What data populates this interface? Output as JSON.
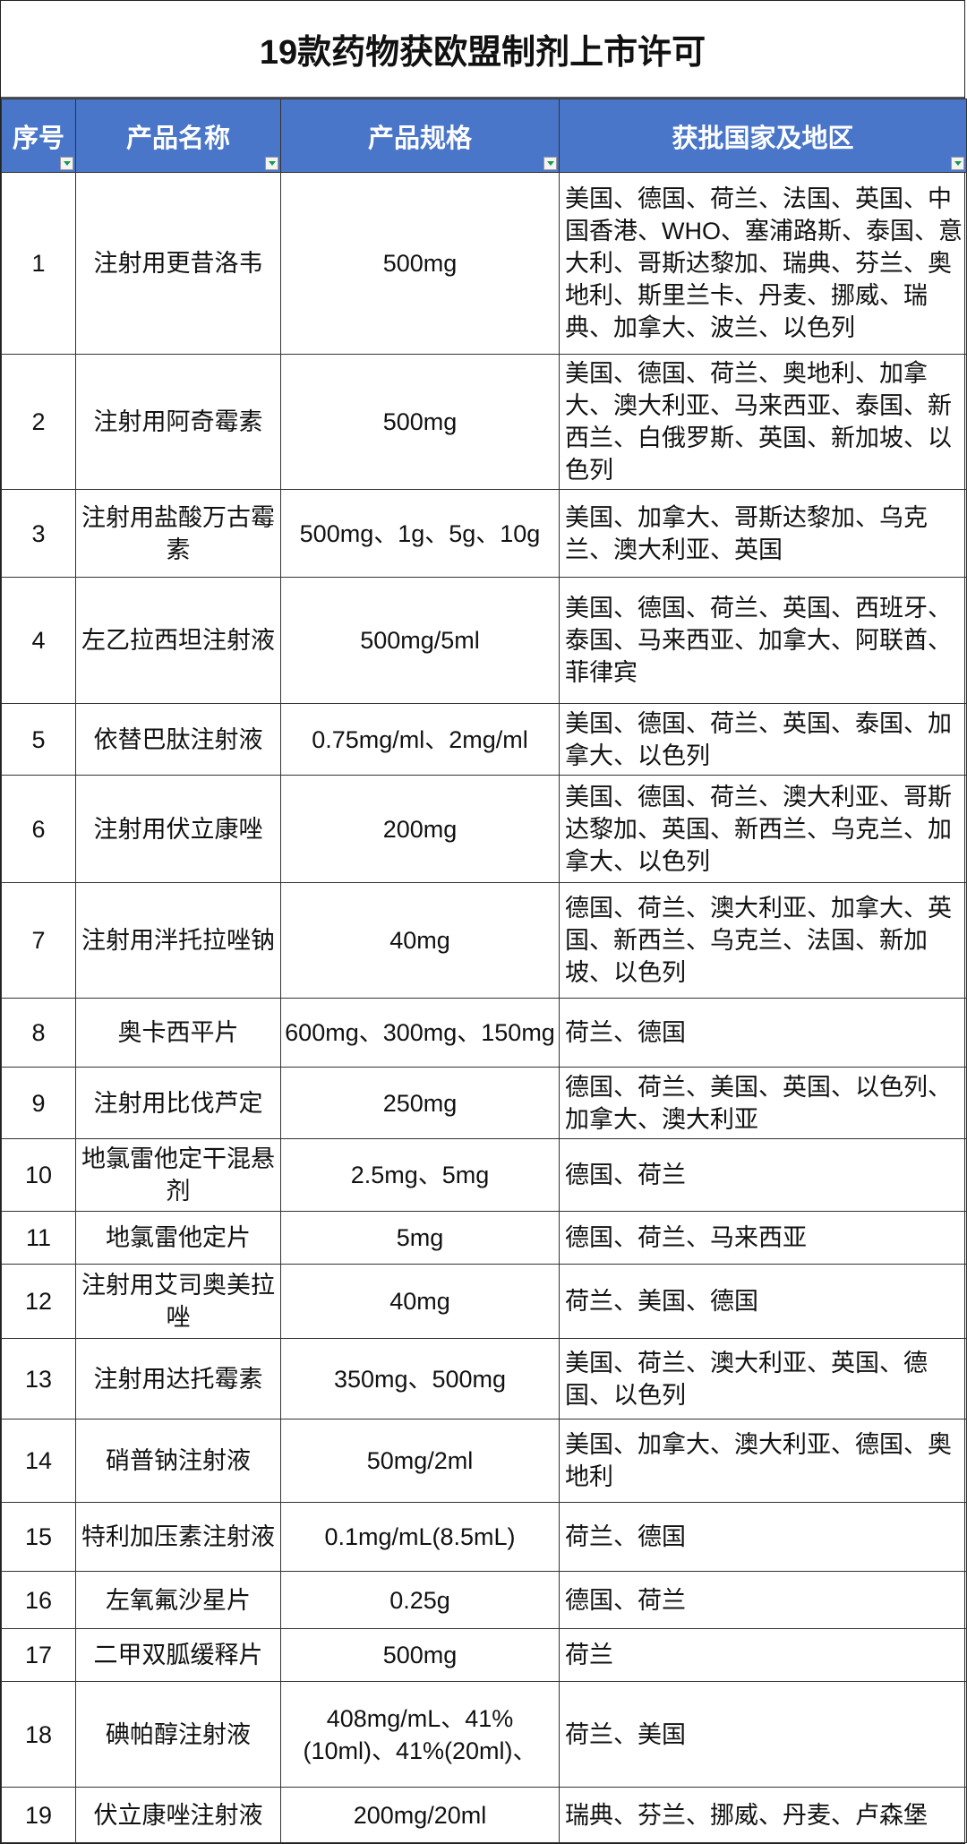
{
  "title": "19款药物获欧盟制剂上市许可",
  "header_color": "#4a76c9",
  "columns": [
    "序号",
    "产品名称",
    "产品规格",
    "获批国家及地区"
  ],
  "rows": [
    {
      "no": "1",
      "name": "注射用更昔洛韦",
      "spec": "500mg",
      "regions": "美国、德国、荷兰、法国、英国、中国香港、WHO、塞浦路斯、泰国、意大利、哥斯达黎加、瑞典、芬兰、奥地利、斯里兰卡、丹麦、挪威、瑞典、加拿大、波兰、以色列"
    },
    {
      "no": "2",
      "name": "注射用阿奇霉素",
      "spec": "500mg",
      "regions": "美国、德国、荷兰、奥地利、加拿大、澳大利亚、马来西亚、泰国、新西兰、白俄罗斯、英国、新加坡、以色列"
    },
    {
      "no": "3",
      "name": "注射用盐酸万古霉素",
      "spec": "500mg、1g、5g、10g",
      "regions": "美国、加拿大、哥斯达黎加、乌克兰、澳大利亚、英国"
    },
    {
      "no": "4",
      "name": "左乙拉西坦注射液",
      "spec": "500mg/5ml",
      "regions": "美国、德国、荷兰、英国、西班牙、泰国、马来西亚、加拿大、阿联酋、菲律宾"
    },
    {
      "no": "5",
      "name": "依替巴肽注射液",
      "spec": "0.75mg/ml、2mg/ml",
      "regions": "美国、德国、荷兰、英国、泰国、加拿大、以色列"
    },
    {
      "no": "6",
      "name": "注射用伏立康唑",
      "spec": "200mg",
      "regions": "美国、德国、荷兰、澳大利亚、哥斯达黎加、英国、新西兰、乌克兰、加拿大、以色列"
    },
    {
      "no": "7",
      "name": "注射用泮托拉唑钠",
      "spec": "40mg",
      "regions": "德国、荷兰、澳大利亚、加拿大、英国、新西兰、乌克兰、法国、新加坡、以色列"
    },
    {
      "no": "8",
      "name": "奥卡西平片",
      "spec": "600mg、300mg、150mg",
      "regions": "荷兰、德国"
    },
    {
      "no": "9",
      "name": "注射用比伐芦定",
      "spec": "250mg",
      "regions": "德国、荷兰、美国、英国、以色列、加拿大、澳大利亚"
    },
    {
      "no": "10",
      "name": "地氯雷他定干混悬剂",
      "spec": "2.5mg、5mg",
      "regions": "德国、荷兰"
    },
    {
      "no": "11",
      "name": "地氯雷他定片",
      "spec": "5mg",
      "regions": "德国、荷兰、马来西亚"
    },
    {
      "no": "12",
      "name": "注射用艾司奥美拉唑",
      "spec": "40mg",
      "regions": "荷兰、美国、德国"
    },
    {
      "no": "13",
      "name": "注射用达托霉素",
      "spec": "350mg、500mg",
      "regions": "美国、荷兰、澳大利亚、英国、德国、以色列"
    },
    {
      "no": "14",
      "name": "硝普钠注射液",
      "spec": "50mg/2ml",
      "regions": "美国、加拿大、澳大利亚、德国、奥地利"
    },
    {
      "no": "15",
      "name": "特利加压素注射液",
      "spec": "0.1mg/mL(8.5mL)",
      "regions": "荷兰、德国"
    },
    {
      "no": "16",
      "name": "左氧氟沙星片",
      "spec": "0.25g",
      "regions": "德国、荷兰"
    },
    {
      "no": "17",
      "name": "二甲双胍缓释片",
      "spec": "500mg",
      "regions": "荷兰"
    },
    {
      "no": "18",
      "name": "碘帕醇注射液",
      "spec": "408mg/mL、41%(10ml)、41%(20ml)、",
      "regions": "荷兰、美国"
    },
    {
      "no": "19",
      "name": "伏立康唑注射液",
      "spec": "200mg/20ml",
      "regions": "瑞典、芬兰、挪威、丹麦、卢森堡"
    }
  ]
}
